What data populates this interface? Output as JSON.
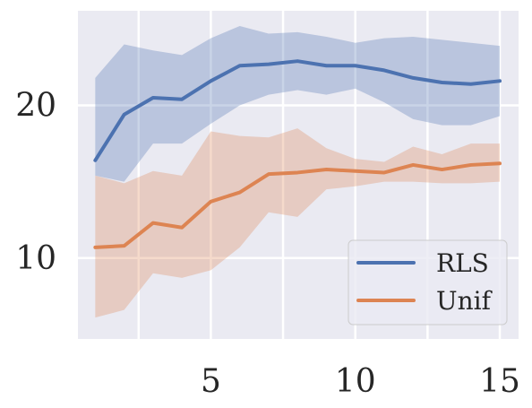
{
  "chart_data": {
    "type": "line",
    "x": [
      1,
      2,
      3,
      4,
      5,
      6,
      7,
      8,
      9,
      10,
      11,
      12,
      13,
      14,
      15
    ],
    "series": [
      {
        "name": "RLS",
        "color": "#4c72b0",
        "values": [
          16.4,
          19.4,
          20.5,
          20.4,
          21.6,
          22.6,
          22.7,
          22.9,
          22.6,
          22.6,
          22.3,
          21.8,
          21.5,
          21.4,
          21.6
        ],
        "upper": [
          21.8,
          24.0,
          23.6,
          23.3,
          24.4,
          25.2,
          24.7,
          24.8,
          24.5,
          24.1,
          24.4,
          24.5,
          24.3,
          24.1,
          23.9
        ],
        "lower": [
          15.4,
          15.0,
          17.5,
          17.5,
          18.8,
          20.0,
          20.7,
          21.0,
          20.7,
          21.1,
          20.2,
          19.1,
          18.7,
          18.7,
          19.3
        ]
      },
      {
        "name": "Unif",
        "color": "#dd8452",
        "values": [
          10.7,
          10.8,
          12.3,
          12.0,
          13.7,
          14.3,
          15.5,
          15.6,
          15.8,
          15.7,
          15.6,
          16.1,
          15.8,
          16.1,
          16.2
        ],
        "upper": [
          15.4,
          14.9,
          15.7,
          15.4,
          18.3,
          18.0,
          17.9,
          18.5,
          17.2,
          16.5,
          16.3,
          17.3,
          16.8,
          17.5,
          17.5
        ],
        "lower": [
          6.1,
          6.6,
          9.0,
          8.7,
          9.2,
          10.7,
          13.0,
          12.7,
          14.5,
          14.7,
          15.0,
          15.0,
          14.9,
          14.9,
          15.0
        ]
      }
    ],
    "xticks": [
      5,
      10,
      15
    ],
    "yticks": [
      10,
      20
    ],
    "xlim": [
      0.4,
      15.65
    ],
    "ylim": [
      4.7,
      26.2
    ],
    "grid": true,
    "legend_position": "lower-right",
    "background": "#eaeaf2"
  }
}
